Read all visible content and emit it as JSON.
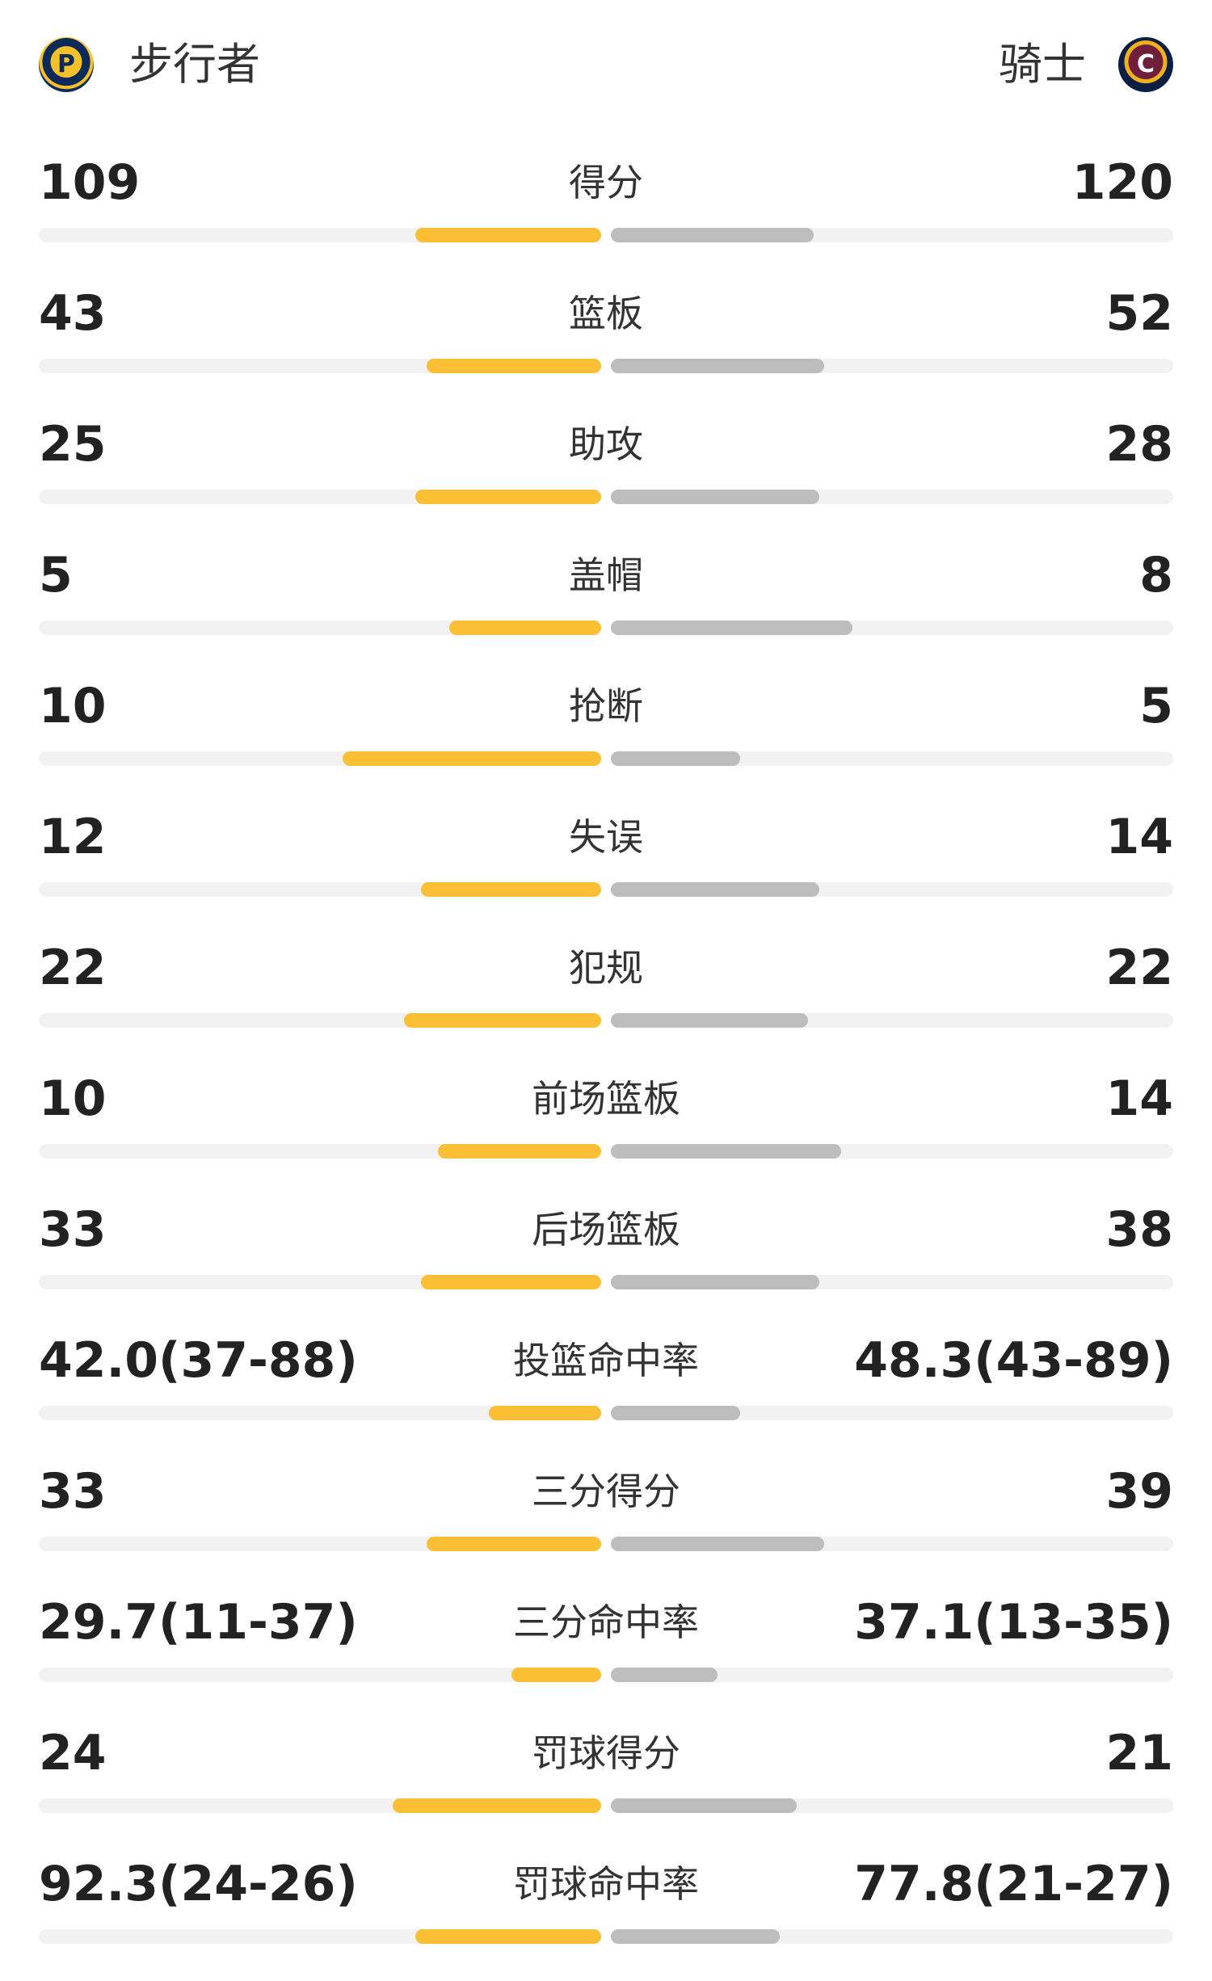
{
  "header": {
    "home_team": "步行者",
    "away_team": "骑士",
    "home_logo_icon": "pacers-logo-icon",
    "away_logo_icon": "cavaliers-logo-icon"
  },
  "colors": {
    "home_bar": "#fbbf36",
    "away_bar": "#bdbdbd",
    "track": "#f2f2f2"
  },
  "stats": [
    {
      "label": "得分",
      "home": "109",
      "away": "120",
      "home_fill": 0.33,
      "away_fill": 0.36
    },
    {
      "label": "篮板",
      "home": "43",
      "away": "52",
      "home_fill": 0.31,
      "away_fill": 0.38
    },
    {
      "label": "助攻",
      "home": "25",
      "away": "28",
      "home_fill": 0.33,
      "away_fill": 0.37
    },
    {
      "label": "盖帽",
      "home": "5",
      "away": "8",
      "home_fill": 0.27,
      "away_fill": 0.43
    },
    {
      "label": "抢断",
      "home": "10",
      "away": "5",
      "home_fill": 0.46,
      "away_fill": 0.23
    },
    {
      "label": "失误",
      "home": "12",
      "away": "14",
      "home_fill": 0.32,
      "away_fill": 0.37
    },
    {
      "label": "犯规",
      "home": "22",
      "away": "22",
      "home_fill": 0.35,
      "away_fill": 0.35
    },
    {
      "label": "前场篮板",
      "home": "10",
      "away": "14",
      "home_fill": 0.29,
      "away_fill": 0.41
    },
    {
      "label": "后场篮板",
      "home": "33",
      "away": "38",
      "home_fill": 0.32,
      "away_fill": 0.37
    },
    {
      "label": "投篮命中率",
      "home": "42.0(37-88)",
      "away": "48.3(43-89)",
      "home_fill": 0.2,
      "away_fill": 0.23
    },
    {
      "label": "三分得分",
      "home": "33",
      "away": "39",
      "home_fill": 0.31,
      "away_fill": 0.38
    },
    {
      "label": "三分命中率",
      "home": "29.7(11-37)",
      "away": "37.1(13-35)",
      "home_fill": 0.16,
      "away_fill": 0.19
    },
    {
      "label": "罚球得分",
      "home": "24",
      "away": "21",
      "home_fill": 0.37,
      "away_fill": 0.33
    },
    {
      "label": "罚球命中率",
      "home": "92.3(24-26)",
      "away": "77.8(21-27)",
      "home_fill": 0.33,
      "away_fill": 0.3
    }
  ]
}
